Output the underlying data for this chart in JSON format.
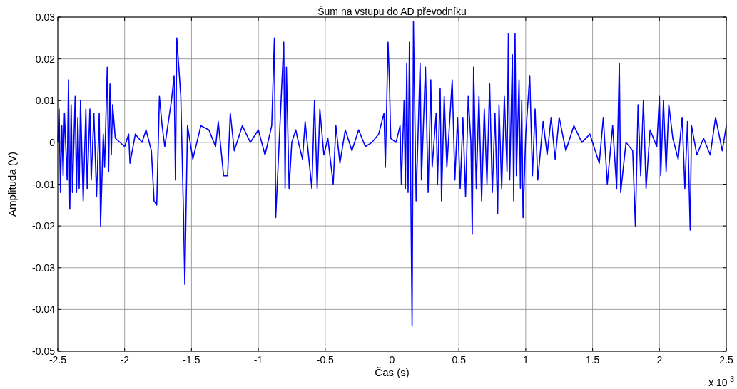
{
  "chart_data": {
    "type": "line",
    "title": "Šum na vstupu do AD převodníku",
    "xlabel": "Čas (s)",
    "ylabel": "Amplituda (V)",
    "annotations": [
      "x 10$^{-3}$"
    ],
    "xlim": [
      -2.5,
      2.5
    ],
    "xticks": [
      -2.5,
      -2,
      -1.5,
      -1,
      -0.5,
      0,
      0.5,
      1,
      1.5,
      2,
      2.5
    ],
    "ylim": [
      -0.05,
      0.03
    ],
    "yticks": [
      -0.05,
      -0.04,
      -0.03,
      -0.02,
      -0.01,
      0,
      0.01,
      0.02,
      0.03
    ],
    "grid": true,
    "marker": "none",
    "line_style": "solid",
    "series": [
      {
        "color": "#0000ff",
        "x": [
          -2.5,
          -2.49,
          -2.48,
          -2.47,
          -2.46,
          -2.45,
          -2.43,
          -2.42,
          -2.41,
          -2.4,
          -2.39,
          -2.37,
          -2.36,
          -2.35,
          -2.34,
          -2.33,
          -2.31,
          -2.29,
          -2.28,
          -2.26,
          -2.25,
          -2.23,
          -2.21,
          -2.19,
          -2.18,
          -2.16,
          -2.15,
          -2.13,
          -2.12,
          -2.11,
          -2.1,
          -2.09,
          -2.07,
          -2,
          -1.97,
          -1.96,
          -1.92,
          -1.87,
          -1.84,
          -1.8,
          -1.78,
          -1.76,
          -1.74,
          -1.72,
          -1.7,
          -1.65,
          -1.63,
          -1.62,
          -1.61,
          -1.58,
          -1.56,
          -1.55,
          -1.53,
          -1.49,
          -1.43,
          -1.37,
          -1.32,
          -1.3,
          -1.26,
          -1.23,
          -1.21,
          -1.18,
          -1.12,
          -1.06,
          -1,
          -0.95,
          -0.9,
          -0.88,
          -0.87,
          -0.84,
          -0.81,
          -0.8,
          -0.79,
          -0.77,
          -0.75,
          -0.72,
          -0.7,
          -0.67,
          -0.65,
          -0.6,
          -0.58,
          -0.56,
          -0.54,
          -0.51,
          -0.48,
          -0.44,
          -0.42,
          -0.39,
          -0.35,
          -0.3,
          -0.25,
          -0.2,
          -0.15,
          -0.1,
          -0.06,
          -0.05,
          -0.03,
          -0.02,
          -0.01,
          0.03,
          0.06,
          0.07,
          0.09,
          0.1,
          0.11,
          0.12,
          0.13,
          0.14,
          0.15,
          0.16,
          0.18,
          0.21,
          0.22,
          0.25,
          0.27,
          0.29,
          0.3,
          0.33,
          0.34,
          0.36,
          0.37,
          0.39,
          0.41,
          0.45,
          0.47,
          0.49,
          0.51,
          0.53,
          0.55,
          0.57,
          0.59,
          0.6,
          0.61,
          0.63,
          0.65,
          0.67,
          0.69,
          0.71,
          0.73,
          0.75,
          0.77,
          0.79,
          0.8,
          0.82,
          0.84,
          0.86,
          0.87,
          0.88,
          0.9,
          0.91,
          0.92,
          0.93,
          0.95,
          0.96,
          0.97,
          0.98,
          1,
          1.03,
          1.05,
          1.07,
          1.09,
          1.13,
          1.16,
          1.19,
          1.22,
          1.25,
          1.3,
          1.36,
          1.42,
          1.48,
          1.55,
          1.58,
          1.61,
          1.65,
          1.68,
          1.7,
          1.71,
          1.75,
          1.8,
          1.82,
          1.84,
          1.86,
          1.88,
          1.9,
          1.93,
          1.98,
          2,
          2.01,
          2.03,
          2.05,
          2.07,
          2.1,
          2.14,
          2.17,
          2.19,
          2.21,
          2.23,
          2.24,
          2.28,
          2.33,
          2.38,
          2.42,
          2.47,
          2.5
        ],
        "values": [
          0,
          0.008,
          -0.012,
          0.004,
          -0.008,
          0.007,
          -0.009,
          0.015,
          -0.016,
          0.009,
          -0.012,
          0.011,
          -0.012,
          0.006,
          -0.011,
          0.01,
          -0.014,
          0.008,
          -0.011,
          0.008,
          -0.009,
          0.007,
          -0.013,
          0.007,
          -0.02,
          0.002,
          -0.006,
          0.018,
          -0.007,
          0.014,
          -0.003,
          0.009,
          0.001,
          -0.001,
          0.002,
          -0.005,
          0.002,
          0,
          0.003,
          -0.002,
          -0.014,
          -0.015,
          0.011,
          0.004,
          -0.001,
          0.01,
          0.016,
          -0.009,
          0.025,
          0.011,
          -0.017,
          -0.034,
          0.004,
          -0.004,
          0.004,
          0.003,
          -0.001,
          0.005,
          -0.008,
          -0.008,
          0.007,
          -0.002,
          0.004,
          0,
          0.003,
          -0.003,
          0.004,
          0.025,
          -0.018,
          0.003,
          0.024,
          -0.011,
          0.018,
          -0.011,
          0,
          0.003,
          0,
          -0.004,
          0.005,
          -0.011,
          0.01,
          -0.011,
          0.008,
          -0.003,
          0.001,
          -0.01,
          0.004,
          -0.005,
          0.003,
          -0.002,
          0.003,
          -0.001,
          0,
          0.002,
          0.007,
          -0.006,
          0.024,
          0.015,
          0.001,
          0,
          0.004,
          -0.01,
          0.01,
          -0.011,
          0.019,
          -0.012,
          0.024,
          -0.011,
          -0.044,
          0.029,
          -0.014,
          0.019,
          -0.009,
          0.018,
          -0.012,
          0.015,
          -0.006,
          0.007,
          -0.01,
          0.013,
          -0.014,
          0.011,
          -0.006,
          0.015,
          -0.009,
          0.006,
          -0.011,
          0.006,
          -0.013,
          0.011,
          0,
          -0.022,
          0.018,
          -0.011,
          0.011,
          -0.014,
          0.008,
          -0.01,
          0.014,
          -0.012,
          0.007,
          -0.017,
          0.009,
          -0.011,
          0.011,
          -0.007,
          0.026,
          -0.009,
          0.021,
          -0.014,
          0.026,
          -0.008,
          0.015,
          -0.011,
          0.01,
          -0.018,
          0.002,
          0.016,
          -0.008,
          0.008,
          -0.009,
          0.005,
          -0.003,
          0.006,
          -0.004,
          0.006,
          -0.002,
          0.004,
          0,
          0.002,
          -0.005,
          0.006,
          -0.01,
          0.004,
          -0.011,
          0.019,
          -0.012,
          0,
          -0.002,
          -0.02,
          0.009,
          -0.008,
          0.01,
          -0.011,
          0.003,
          -0.001,
          0.011,
          -0.008,
          0.01,
          -0.007,
          0.009,
          0.001,
          -0.004,
          0.006,
          -0.011,
          0.005,
          -0.021,
          0.004,
          -0.003,
          0.001,
          -0.003,
          0.006,
          -0.002,
          0.004
        ]
      }
    ]
  }
}
